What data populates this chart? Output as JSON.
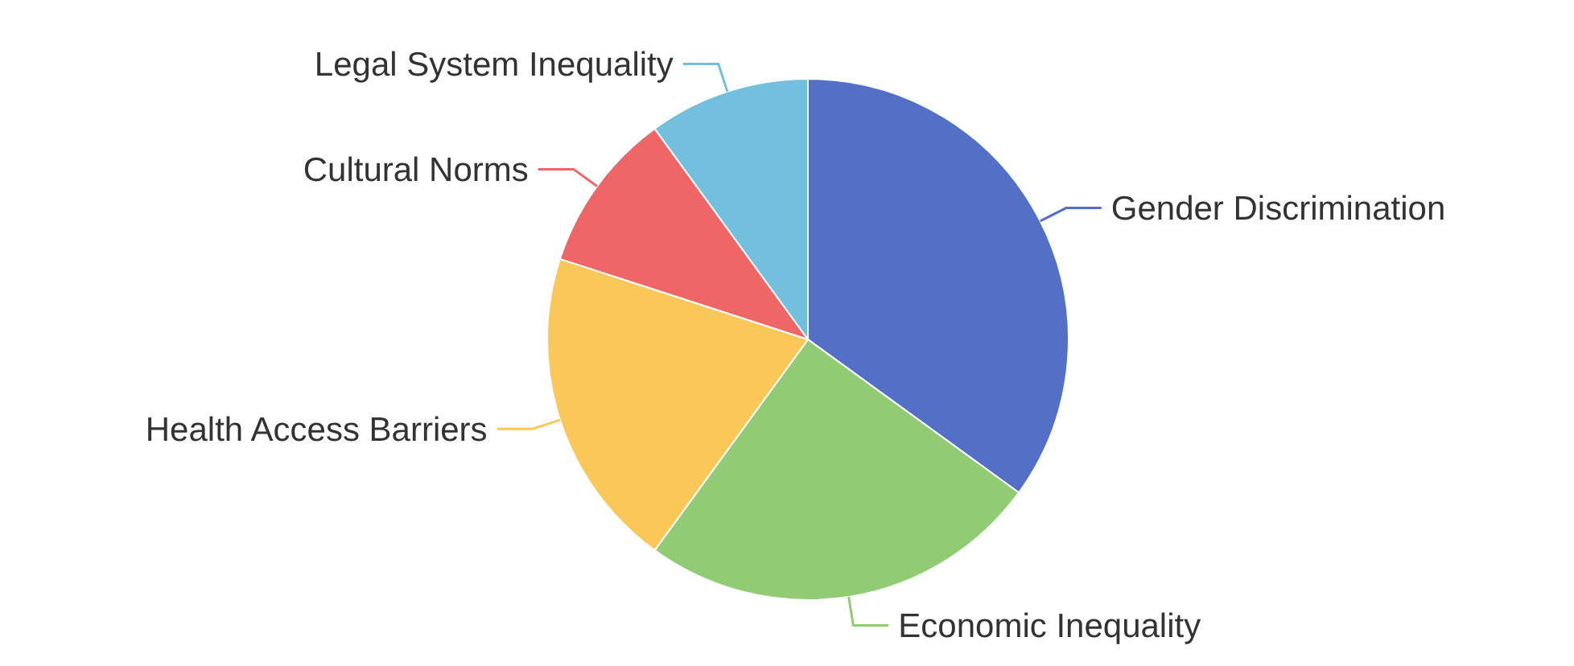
{
  "chart_data": {
    "type": "pie",
    "categories": [
      "Gender Discrimination",
      "Economic Inequality",
      "Health Access Barriers",
      "Cultural Norms",
      "Legal System Inequality"
    ],
    "values": [
      35,
      25,
      20,
      10,
      10
    ],
    "colors": [
      "#5470c6",
      "#91cc75",
      "#fac858",
      "#ee6666",
      "#73c0de"
    ]
  }
}
